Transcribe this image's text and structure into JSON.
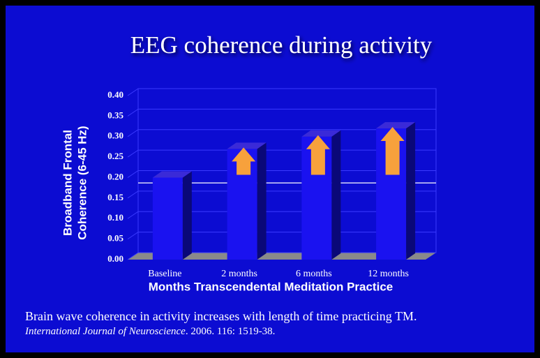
{
  "chart_data": {
    "type": "bar3d",
    "title": "EEG coherence during activity",
    "y_label": [
      "Broadband Frontal",
      "Coherence (6-45 Hz)"
    ],
    "x_label": "Months Transcendental Meditation Practice",
    "categories": [
      "Baseline",
      "2 months",
      "6 months",
      "12 months"
    ],
    "values": [
      0.2,
      0.27,
      0.3,
      0.32
    ],
    "color": "#1a12f0",
    "arrow_color": "#f7a13c",
    "reference_line": 0.17,
    "ylim": [
      0,
      0.4
    ],
    "yticks": [
      {
        "value": 0,
        "label": "0.00"
      },
      0.05,
      {
        "value": 0.1,
        "label": "0.10"
      },
      0.15,
      {
        "value": 0.2,
        "label": "0.20"
      },
      0.25,
      {
        "value": 0.3,
        "label": "0.30"
      },
      0.35,
      {
        "value": 0.4,
        "label": "0.40"
      }
    ],
    "grid": true,
    "caption": "Brain wave coherence in activity increases with length of time practicing TM.",
    "citation_journal": "International  Journal of Neuroscience",
    "citation_details": ". 2006. 116: 1519-38."
  }
}
